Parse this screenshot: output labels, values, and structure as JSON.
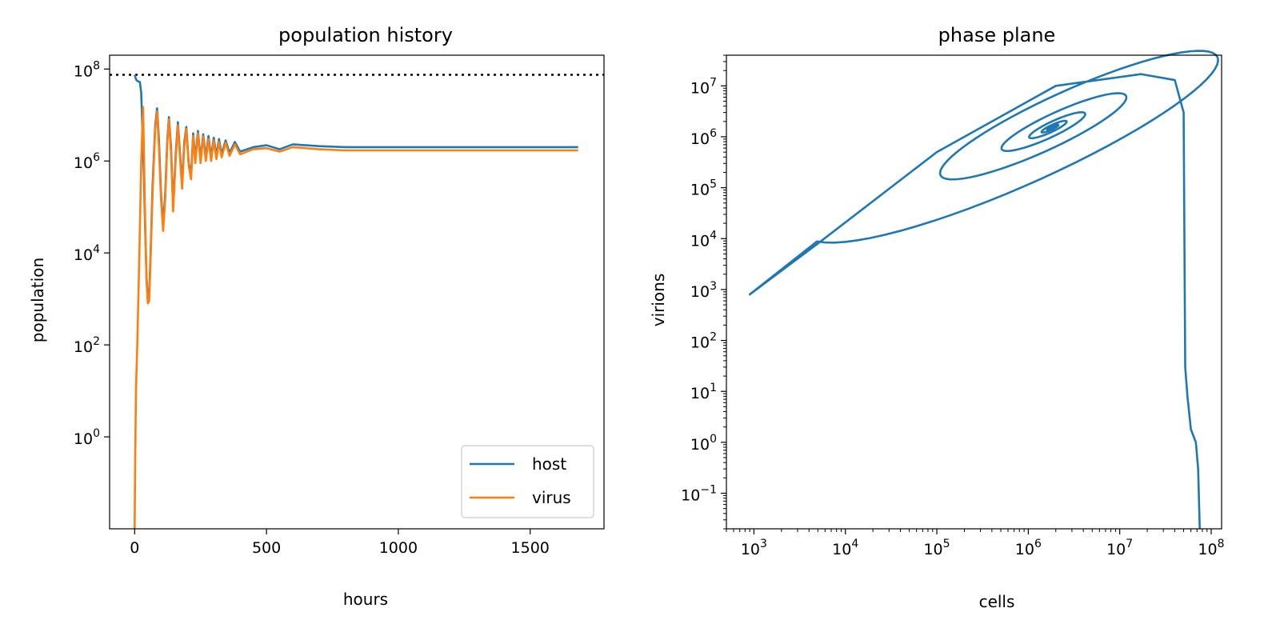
{
  "chart_data": [
    {
      "type": "line",
      "title": "population history",
      "xlabel": "hours",
      "ylabel": "population",
      "y_scale": "log",
      "xlim": [
        -95,
        1780
      ],
      "ylim": [
        0.01,
        200000000
      ],
      "x_ticks": [
        0,
        500,
        1000,
        1500
      ],
      "y_ticks": [
        1,
        100,
        10000,
        1000000,
        100000000
      ],
      "y_tick_labels": [
        {
          "base": "10",
          "exp": "0"
        },
        {
          "base": "10",
          "exp": "2"
        },
        {
          "base": "10",
          "exp": "4"
        },
        {
          "base": "10",
          "exp": "6"
        },
        {
          "base": "10",
          "exp": "8"
        }
      ],
      "grid": false,
      "legend_position": "lower right",
      "reference_line": {
        "y": 75000000,
        "style": "dotted",
        "color": "#000000"
      },
      "series": [
        {
          "name": "host",
          "color": "#1f77b4",
          "x": [
            0,
            5,
            10,
            20,
            25,
            35,
            40,
            45,
            50,
            55,
            60,
            68,
            78,
            85,
            92,
            100,
            108,
            116,
            124,
            130,
            138,
            146,
            156,
            164,
            172,
            180,
            188,
            196,
            205,
            214,
            222,
            230,
            240,
            250,
            260,
            270,
            280,
            290,
            300,
            310,
            320,
            330,
            345,
            360,
            380,
            400,
            450,
            500,
            550,
            600,
            700,
            800,
            1000,
            1200,
            1400,
            1682
          ],
          "y": [
            75000000,
            60000000,
            55000000,
            52000000,
            30000000,
            500000,
            30000,
            3000,
            1000,
            1200,
            8000,
            300000,
            6000000,
            14000000,
            3000000,
            200000,
            40000,
            200000,
            3000000,
            9000000,
            2000000,
            100000,
            1500000,
            7000000,
            1500000,
            300000,
            2500000,
            5500000,
            900000,
            500000,
            4000000,
            1100000,
            4500000,
            1100000,
            3800000,
            1200000,
            3500000,
            1200000,
            3200000,
            1300000,
            3000000,
            1400000,
            2800000,
            1500000,
            2600000,
            1600000,
            2000000,
            2200000,
            1800000,
            2300000,
            2100000,
            2000000,
            2000000,
            2000000,
            2000000,
            2000000
          ]
        },
        {
          "name": "virus",
          "color": "#ff7f0e",
          "x": [
            0,
            2,
            5,
            10,
            18,
            25,
            32,
            40,
            45,
            50,
            55,
            60,
            68,
            78,
            85,
            92,
            100,
            108,
            116,
            124,
            130,
            138,
            146,
            156,
            164,
            172,
            180,
            188,
            196,
            205,
            214,
            222,
            230,
            240,
            250,
            260,
            270,
            280,
            290,
            300,
            310,
            320,
            330,
            345,
            360,
            380,
            400,
            450,
            500,
            550,
            600,
            700,
            800,
            1000,
            1200,
            1400,
            1682
          ],
          "y": [
            0.01,
            0.3,
            10,
            100,
            10000,
            1000000,
            15000000,
            50000,
            2500,
            800,
            900,
            6000,
            200000,
            5000000,
            12000000,
            2000000,
            150000,
            30000,
            150000,
            2500000,
            8000000,
            1500000,
            80000,
            1200000,
            6000000,
            1200000,
            250000,
            2000000,
            5000000,
            800000,
            400000,
            3500000,
            900000,
            4000000,
            900000,
            3400000,
            1000000,
            3000000,
            1000000,
            2800000,
            1100000,
            2600000,
            1200000,
            2500000,
            1300000,
            2300000,
            1400000,
            1800000,
            1900000,
            1600000,
            2000000,
            1800000,
            1700000,
            1700000,
            1700000,
            1700000,
            1700000
          ]
        }
      ]
    },
    {
      "type": "line",
      "title": "phase plane",
      "xlabel": "cells",
      "ylabel": "virions",
      "x_scale": "log",
      "y_scale": "log",
      "xlim": [
        500,
        130000000
      ],
      "ylim": [
        0.02,
        40000000
      ],
      "x_ticks": [
        1000,
        10000,
        100000,
        1000000,
        10000000,
        100000000
      ],
      "x_tick_labels": [
        {
          "base": "10",
          "exp": "3"
        },
        {
          "base": "10",
          "exp": "4"
        },
        {
          "base": "10",
          "exp": "5"
        },
        {
          "base": "10",
          "exp": "6"
        },
        {
          "base": "10",
          "exp": "7"
        },
        {
          "base": "10",
          "exp": "8"
        }
      ],
      "y_ticks": [
        0.1,
        1,
        10,
        100,
        1000,
        10000,
        100000,
        1000000,
        10000000
      ],
      "y_tick_labels": [
        {
          "base": "10",
          "exp": "−1"
        },
        {
          "base": "10",
          "exp": "0"
        },
        {
          "base": "10",
          "exp": "1"
        },
        {
          "base": "10",
          "exp": "2"
        },
        {
          "base": "10",
          "exp": "3"
        },
        {
          "base": "10",
          "exp": "4"
        },
        {
          "base": "10",
          "exp": "5"
        },
        {
          "base": "10",
          "exp": "6"
        },
        {
          "base": "10",
          "exp": "7"
        }
      ],
      "grid": false,
      "series": [
        {
          "color": "#1f77b4",
          "spiral": {
            "center_x": 1800000,
            "center_y": 1500000,
            "turns": 12,
            "start_radius_x_decades": 3.4,
            "start_radius_y_decades": 3.3,
            "decay": 0.8
          },
          "x": [
            75000000,
            72000000,
            68000000,
            60000000,
            55000000,
            52000000,
            50000000,
            40000000,
            17000000,
            2000000,
            100000,
            5000,
            900
          ],
          "y": [
            0.02,
            0.3,
            1,
            1.8,
            8,
            30,
            3000000,
            13000000,
            17000000,
            10000000,
            500000,
            8000,
            800
          ]
        }
      ]
    }
  ]
}
